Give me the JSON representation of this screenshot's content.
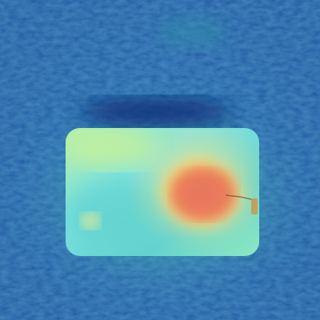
{
  "image": {
    "kind": "heatmap-overlay-photo",
    "subject": "rectangular-object-on-textured-surface",
    "colormap": "jet",
    "colors": {
      "background_deep": "#123f8c",
      "background_mid": "#1f5aa6",
      "background_teal": "#2e8fa8",
      "shadow": "#0c2f78",
      "object_cool": "#63d3cf",
      "object_cyan": "#7fe3e0",
      "object_green": "#b5f0a8",
      "object_yellow": "#f2e48a",
      "hot_orange": "#f2a65a",
      "hot_red": "#e8775c"
    }
  }
}
